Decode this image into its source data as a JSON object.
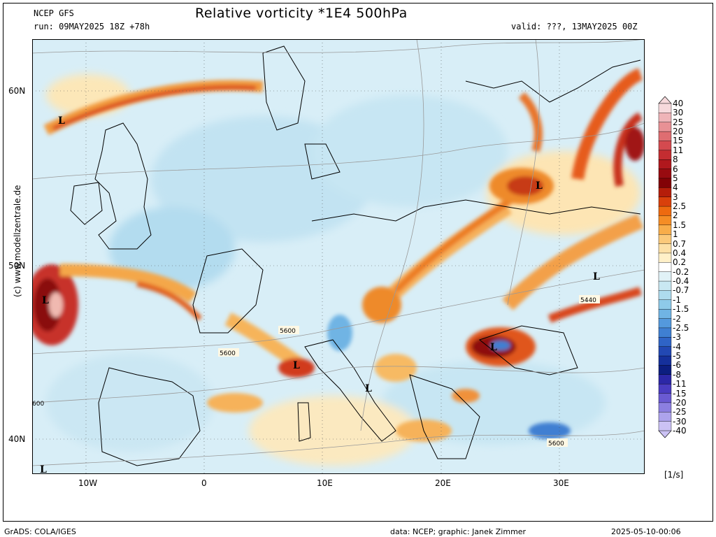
{
  "header": {
    "model": "NCEP GFS",
    "run": "run: 09MAY2025 18Z +78h",
    "title": "Relative vorticity *1E4 500hPa",
    "valid": "valid: ???, 13MAY2025 00Z"
  },
  "side_credit": "(c) www.modellzentrale.de",
  "unit_label": "[1/s]",
  "footer": {
    "left": "GrADS: COLA/IGES",
    "center": "data: NCEP; graphic: Janek Zimmer",
    "right": "2025-05-10-00:06"
  },
  "lat_labels": [
    "60N",
    "50N",
    "40N"
  ],
  "lon_labels": [
    "10W",
    "0",
    "10E",
    "20E",
    "30E"
  ],
  "colorbar": {
    "labels": [
      "40",
      "30",
      "25",
      "20",
      "15",
      "11",
      "8",
      "6",
      "5",
      "4",
      "3",
      "2.5",
      "2",
      "1.5",
      "1",
      "0.7",
      "0.4",
      "0.2",
      "-0.2",
      "-0.4",
      "-0.7",
      "-1",
      "-1.5",
      "-2",
      "-2.5",
      "-3",
      "-4",
      "-5",
      "-6",
      "-8",
      "-11",
      "-15",
      "-20",
      "-25",
      "-30",
      "-40"
    ],
    "colors": [
      "#f6d9dc",
      "#efb4b8",
      "#e89195",
      "#df6d71",
      "#d44a4f",
      "#c42d31",
      "#b0181d",
      "#980b10",
      "#820206",
      "#b51d0a",
      "#d9400b",
      "#ee6a0f",
      "#f58d25",
      "#f8ad4a",
      "#fbc97a",
      "#fde0a6",
      "#fff0c8",
      "#ffffff",
      "#e1f2f7",
      "#c9e8f2",
      "#aedbee",
      "#8ecae9",
      "#70b4e4",
      "#5499dd",
      "#3f7fd2",
      "#2f64c6",
      "#2248b3",
      "#15309b",
      "#0c1e80",
      "#2c27a7",
      "#4a3cc1",
      "#6a5ad2",
      "#8c7fe0",
      "#ad a3ec",
      "#cbc2f4"
    ]
  },
  "pressure_labels": [
    "5600",
    "5600",
    "5440",
    "5600",
    "600"
  ],
  "low_markers": [
    "L",
    "L",
    "L",
    "L",
    "L",
    "L",
    "L",
    "L"
  ]
}
